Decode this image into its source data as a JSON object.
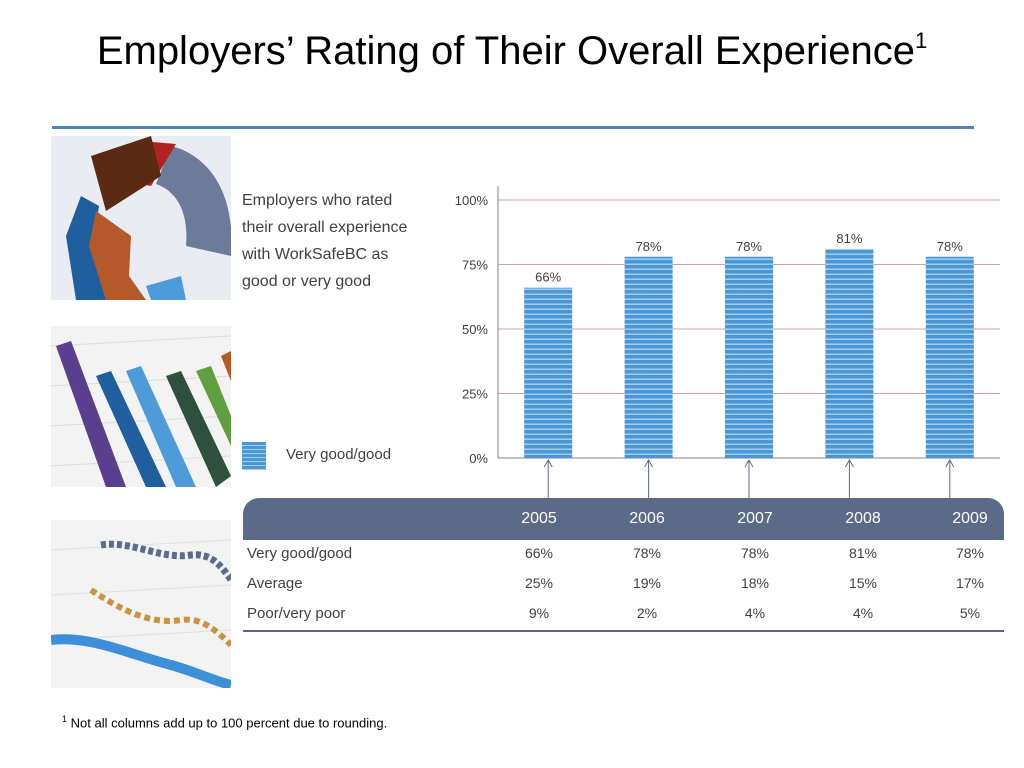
{
  "slide": {
    "title": "Employers’ Rating of Their Overall Experience",
    "title_footnote_mark": "1",
    "description": "Employers who rated their overall experience with WorkSafeBC as good or very good",
    "legend_label": "Very good/good",
    "footnote_mark": "1",
    "footnote_text": "Not all columns add up to 100 percent due to rounding."
  },
  "chart_data": {
    "type": "bar",
    "categories": [
      "2005",
      "2006",
      "2007",
      "2008",
      "2009"
    ],
    "series": [
      {
        "name": "Very good/good",
        "values": [
          66,
          78,
          78,
          81,
          78
        ]
      }
    ],
    "data_labels": [
      "66%",
      "78%",
      "78%",
      "81%",
      "78%"
    ],
    "ylim": [
      0,
      100
    ],
    "yticks": [
      0,
      25,
      50,
      75,
      100
    ],
    "ytick_labels": [
      "0%",
      "25%",
      "50%",
      "75%",
      "100%"
    ],
    "grid": true,
    "bar_color": "#4a97d8"
  },
  "table": {
    "years": [
      "2005",
      "2006",
      "2007",
      "2008",
      "2009"
    ],
    "rows": [
      {
        "label": "Very good/good",
        "values": [
          "66%",
          "78%",
          "78%",
          "81%",
          "78%"
        ]
      },
      {
        "label": "Average",
        "values": [
          "25%",
          "19%",
          "18%",
          "15%",
          "17%"
        ]
      },
      {
        "label": "Poor/very poor",
        "values": [
          "9%",
          "2%",
          "4%",
          "4%",
          "5%"
        ]
      }
    ]
  }
}
